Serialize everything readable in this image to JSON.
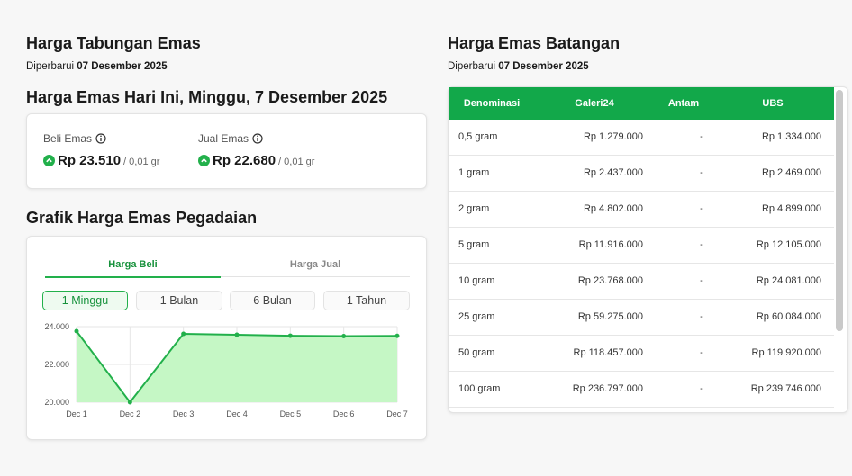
{
  "left": {
    "title": "Harga Tabungan Emas",
    "updated_label": "Diperbarui",
    "updated_date": "07 Desember 2025",
    "today_title": "Harga Emas Hari Ini, Minggu, 7 Desember 2025",
    "buy": {
      "label": "Beli Emas",
      "price": "Rp 23.510",
      "unit": "/ 0,01 gr"
    },
    "sell": {
      "label": "Jual Emas",
      "price": "Rp 22.680",
      "unit": "/ 0,01 gr"
    },
    "chart_title": "Grafik Harga Emas Pegadaian",
    "tabs": [
      "Harga Beli",
      "Harga Jual"
    ],
    "ranges": [
      "1 Minggu",
      "1 Bulan",
      "6 Bulan",
      "1 Tahun"
    ]
  },
  "chart_data": {
    "type": "area",
    "categories": [
      "Dec 1",
      "Dec 2",
      "Dec 3",
      "Dec 4",
      "Dec 5",
      "Dec 6",
      "Dec 7"
    ],
    "values": [
      23760,
      20000,
      23620,
      23570,
      23520,
      23500,
      23510
    ],
    "color": "#22b04b",
    "fill": "#c5f7c5",
    "ylim": [
      20000,
      24000
    ],
    "yticks": [
      {
        "value": 20000,
        "label": "20.000"
      },
      {
        "value": 22000,
        "label": "22.000"
      },
      {
        "value": 24000,
        "label": "24.000"
      }
    ],
    "grid": true
  },
  "right": {
    "title": "Harga Emas Batangan",
    "updated_label": "Diperbarui",
    "updated_date": "07 Desember 2025",
    "table": {
      "headers": [
        "Denominasi",
        "Galeri24",
        "Antam",
        "UBS"
      ],
      "rows": [
        [
          "0,5 gram",
          "Rp 1.279.000",
          "-",
          "Rp 1.334.000"
        ],
        [
          "1 gram",
          "Rp 2.437.000",
          "-",
          "Rp 2.469.000"
        ],
        [
          "2 gram",
          "Rp 4.802.000",
          "-",
          "Rp 4.899.000"
        ],
        [
          "5 gram",
          "Rp 11.916.000",
          "-",
          "Rp 12.105.000"
        ],
        [
          "10 gram",
          "Rp 23.768.000",
          "-",
          "Rp 24.081.000"
        ],
        [
          "25 gram",
          "Rp 59.275.000",
          "-",
          "Rp 60.084.000"
        ],
        [
          "50 gram",
          "Rp 118.457.000",
          "-",
          "Rp 119.920.000"
        ],
        [
          "100 gram",
          "Rp 236.797.000",
          "-",
          "Rp 239.746.000"
        ]
      ]
    }
  }
}
